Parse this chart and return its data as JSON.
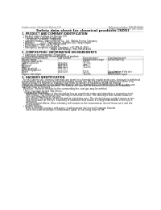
{
  "title": "Safety data sheet for chemical products (SDS)",
  "header_left": "Product name: Lithium Ion Battery Cell",
  "header_right": "Reference number: SMP-MK-08019\nEstablished / Revision: Dec.7,2010",
  "section1_title": "1. PRODUCT AND COMPANY IDENTIFICATION",
  "section1_lines": [
    "  • Product name: Lithium Ion Battery Cell",
    "  • Product code: Cylindrical-type cell",
    "       SY18650U, SY18650L, SY18650A",
    "  • Company name:    Sanyo Electric Co., Ltd.  Mobile Energy Company",
    "  • Address:         2001  Kamishinden, Sumoto-City, Hyogo, Japan",
    "  • Telephone number:   +81-799-26-4111",
    "  • Fax number:   +81-799-26-4128",
    "  • Emergency telephone number (daytime): +81-799-26-3962",
    "                                         (Night and holiday): +81-799-26-4101"
  ],
  "section2_title": "2. COMPOSITION / INFORMATION ON INGREDIENTS",
  "section2_intro": "  • Substance or preparation: Preparation",
  "section2_sub": "  • Information about the chemical nature of product:",
  "table_header_row": [
    "Common chemical name /",
    "CAS number",
    "Concentration /",
    "Classification and"
  ],
  "table_header_row2": [
    "Several names",
    "",
    "Concentration range",
    "hazard labeling"
  ],
  "table_rows": [
    [
      "Lithium cobalt oxide",
      "-",
      "30-60%",
      "-"
    ],
    [
      "(LiMnxCoyO2(x))",
      "",
      "",
      ""
    ],
    [
      "Iron",
      "7439-89-6",
      "10-25%",
      "-"
    ],
    [
      "Aluminum",
      "7429-90-5",
      "2-8%",
      "-"
    ],
    [
      "Graphite",
      "7782-42-5",
      "10-25%",
      "-"
    ],
    [
      "(flake graphite)",
      "7782-44-2",
      "",
      ""
    ],
    [
      "(Artificial graphite)",
      "",
      "",
      ""
    ],
    [
      "Copper",
      "7440-50-8",
      "5-15%",
      "Sensitization of the skin"
    ],
    [
      "",
      "",
      "",
      "group R43.2"
    ],
    [
      "Organic electrolyte",
      "-",
      "10-25%",
      "Inflammable liquid"
    ]
  ],
  "section3_title": "3. HAZARDS IDENTIFICATION",
  "section3_lines": [
    "  For the battery cell, chemical materials are stored in a hermetically sealed metal case, designed to withstand",
    "temperatures and pressures encountered during normal use. As a result, during normal use, there is no",
    "physical danger of ignition or explosion and there no danger of hazardous materials leakage.",
    "  However, if exposed to a fire added mechanical shocks, decomposed, vented electric smoke by miss-use,",
    "the gas release cannot be operated. The battery cell case will be breached of fire-portions, hazardous",
    "materials may be released.",
    "  Moreover, if heated strongly by the surrounding fire, soot gas may be emitted."
  ],
  "bullet1": "  • Most important hazard and effects:",
  "human_health": "    Human health effects:",
  "health_lines": [
    "      Inhalation: The release of the electrolyte has an anesthetic action and stimulates a respiratory tract.",
    "      Skin contact: The release of the electrolyte stimulates a skin. The electrolyte skin contact causes a",
    "      sore and stimulation on the skin.",
    "      Eye contact: The release of the electrolyte stimulates eyes. The electrolyte eye contact causes a sore",
    "      and stimulation on the eye. Especially, a substance that causes a strong inflammation of the eye is",
    "      contained.",
    "      Environmental effects: Since a battery cell remains in the environment, do not throw out it into the",
    "      environment."
  ],
  "bullet2": "  • Specific hazards:",
  "specific_lines": [
    "      If the electrolyte contacts with water, it will generate detrimental hydrogen fluoride.",
    "      Since the used electrolyte is inflammable liquid, do not bring close to fire."
  ],
  "bg_color": "#ffffff",
  "text_color": "#1a1a1a",
  "gray_color": "#666666",
  "line_color": "#aaaaaa"
}
